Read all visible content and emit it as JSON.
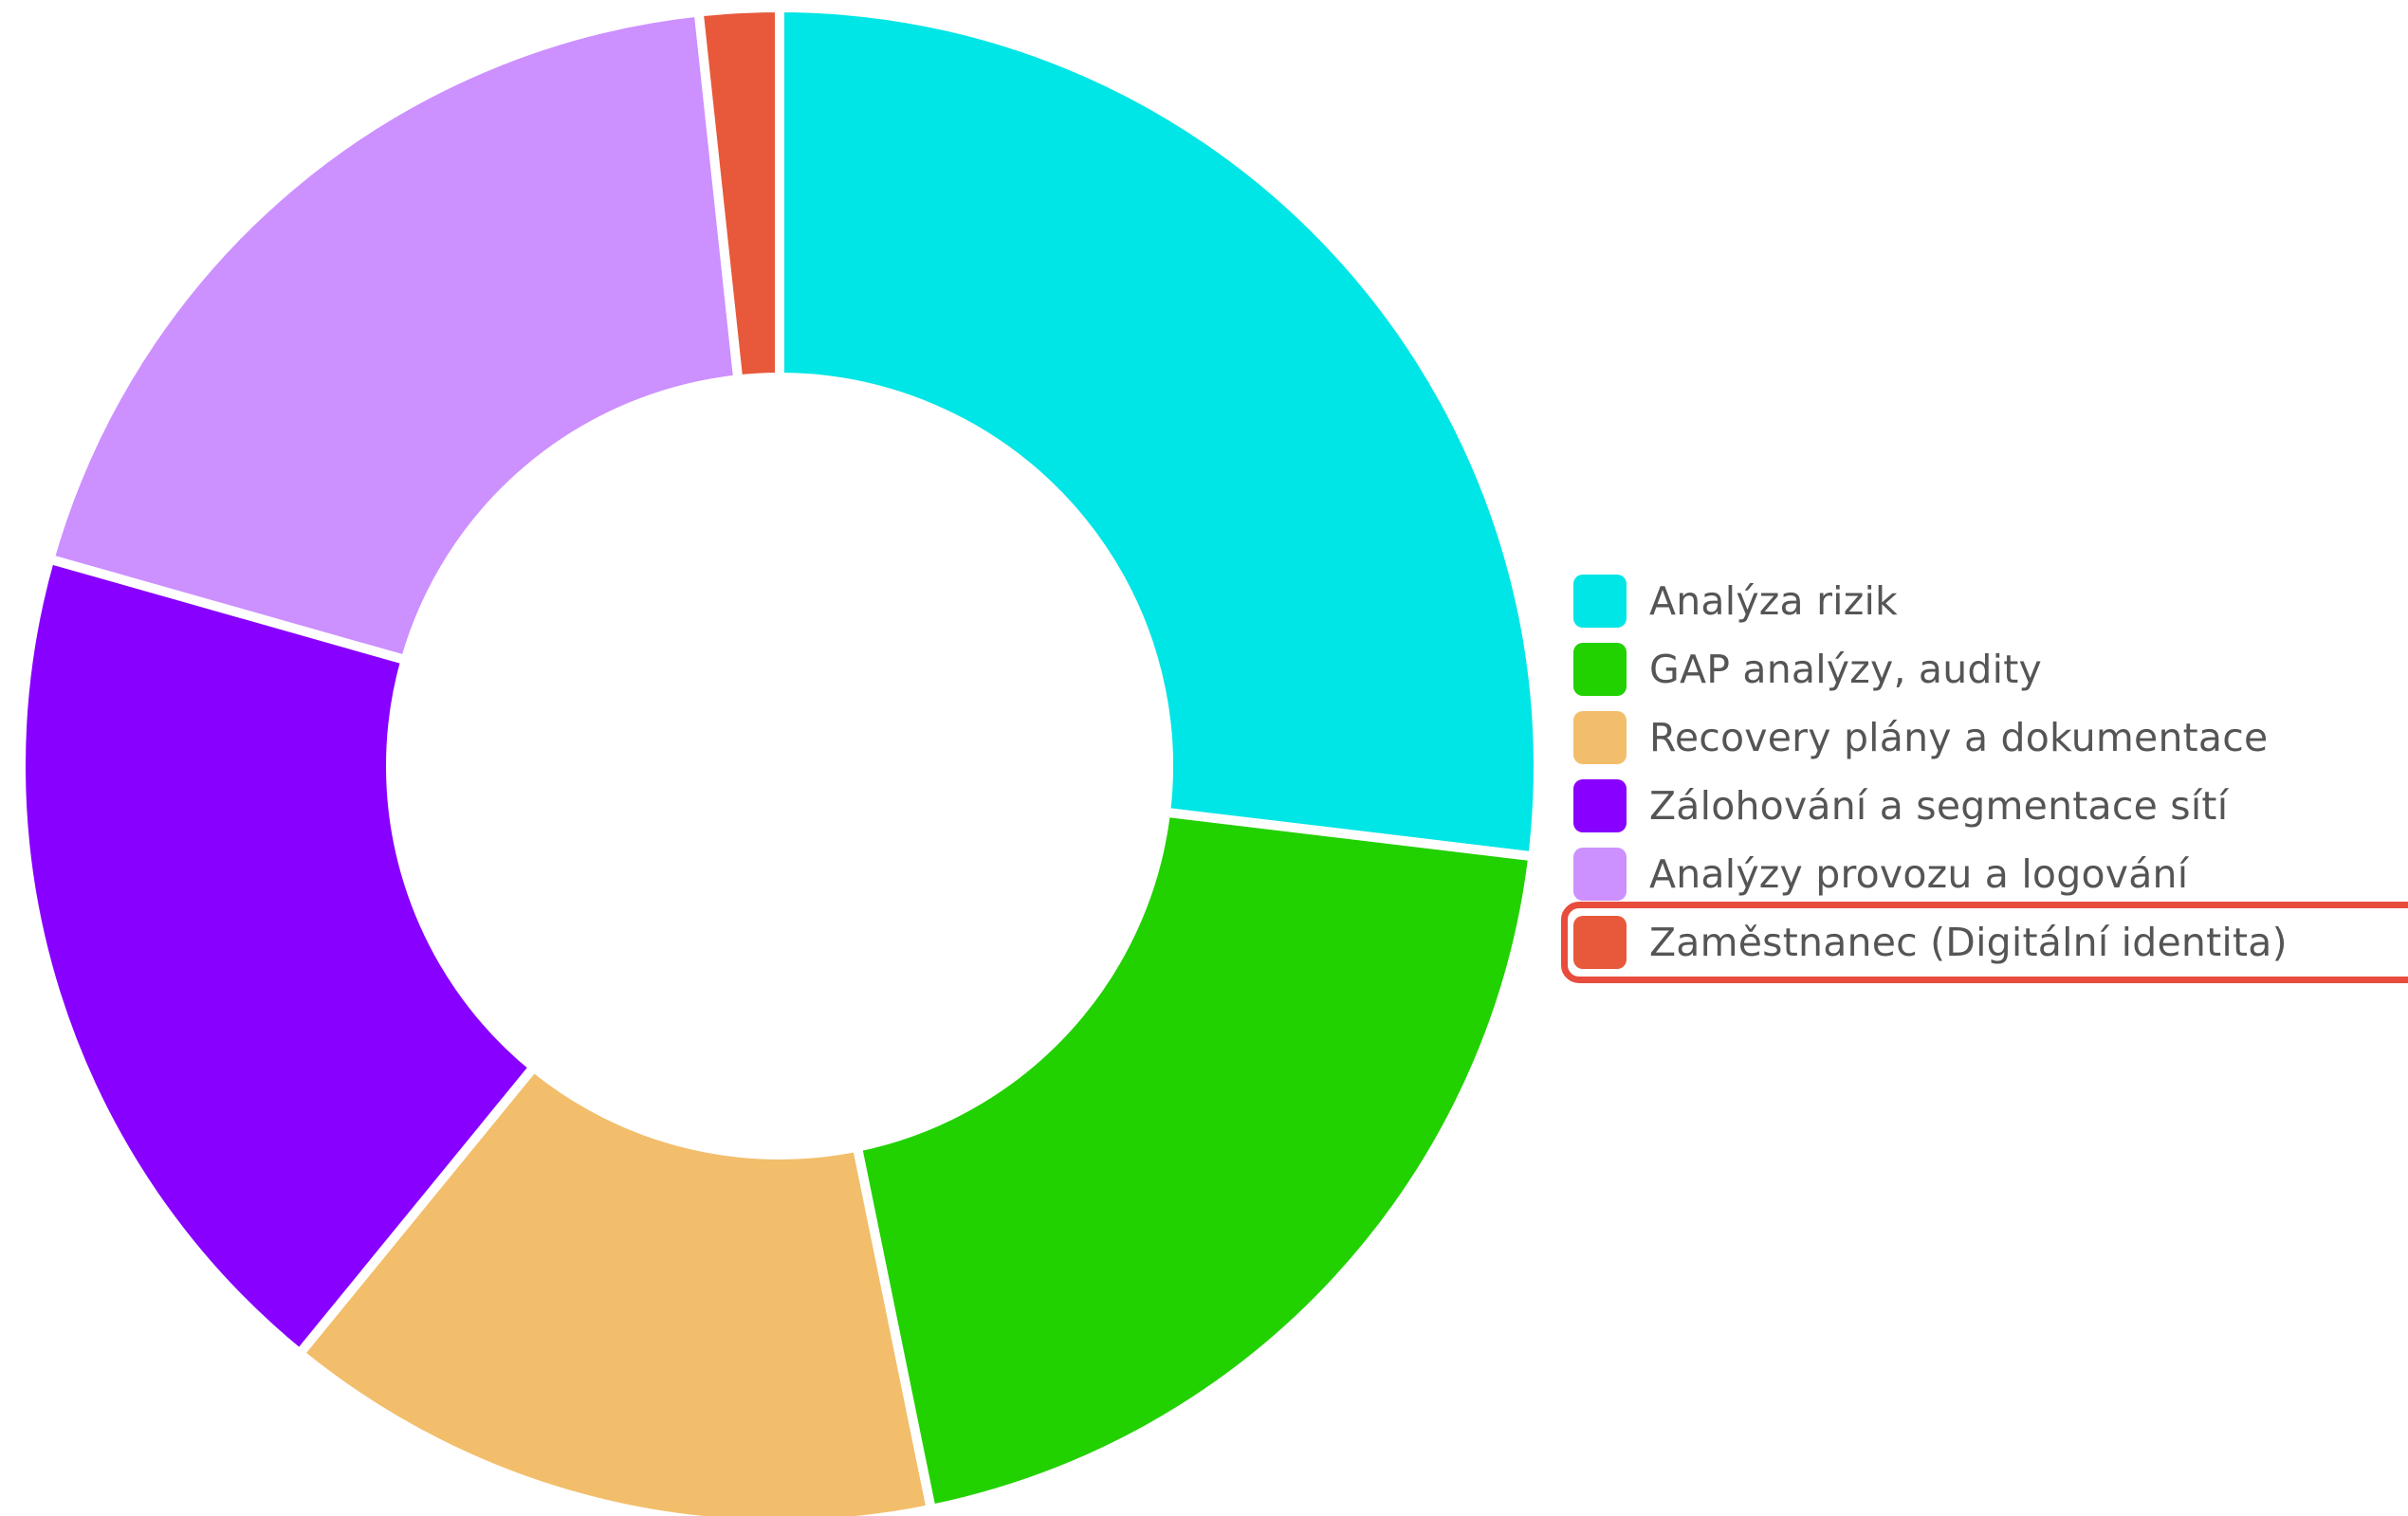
{
  "chart_data": {
    "type": "pie",
    "variant": "donut",
    "categories": [
      "Analýza rizik",
      "GAP analýzy, audity",
      "Recovery plány a dokumentace",
      "Zálohování a segmentace sítí",
      "Analýzy provozu a logování",
      "Zaměstnanec (Digitální identita)"
    ],
    "values": [
      26.9,
      19.9,
      14.1,
      18.5,
      18.9,
      1.7
    ],
    "unit": "%",
    "colors": [
      "#00e5e5",
      "#22d100",
      "#f2be6b",
      "#8800ff",
      "#cc90ff",
      "#e8583a"
    ],
    "legend_position": "right",
    "highlighted_category": "Zaměstnanec (Digitální identita)",
    "highlight_color": "#e74c3c"
  }
}
